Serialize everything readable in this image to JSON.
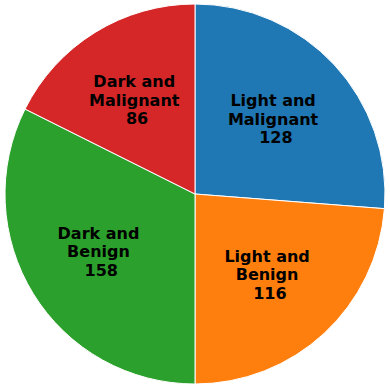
{
  "chart_data": {
    "type": "pie",
    "categories": [
      "Light and\nMalignant\n128",
      "Light and\nBenign\n116",
      "Dark and\nBenign\n158",
      "Dark and\nMalignant\n86"
    ],
    "values": [
      128,
      116,
      158,
      86
    ]
  }
}
